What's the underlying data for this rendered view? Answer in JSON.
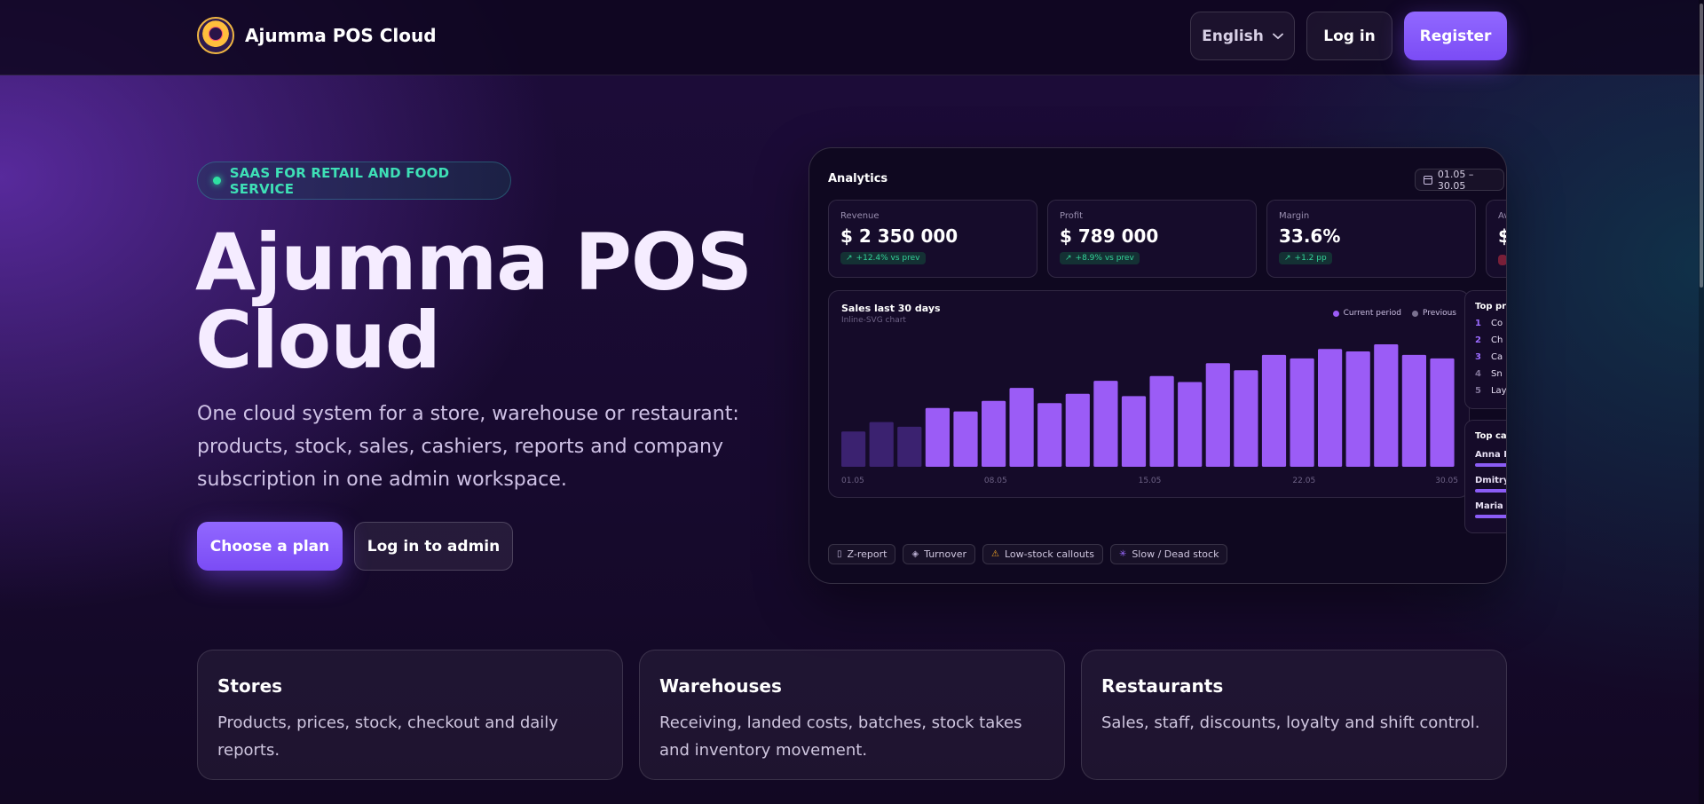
{
  "header": {
    "brand_name": "Ajumma POS Cloud",
    "language": "English",
    "login_label": "Log in",
    "register_label": "Register"
  },
  "hero": {
    "badge": "SAAS FOR RETAIL AND FOOD SERVICE",
    "title_line1": "Ajumma POS",
    "title_line2": "Cloud",
    "subtitle": "One cloud system for a store, warehouse or restaurant: products, stock, sales, cashiers, reports and company subscription in one admin workspace.",
    "cta_primary": "Choose a plan",
    "cta_secondary": "Log in to admin"
  },
  "dashboard": {
    "title": "Analytics",
    "date_range": "01.05 – 30.05",
    "kpis": [
      {
        "label": "Revenue",
        "value": "$ 2 350 000",
        "delta": "+12.4% vs prev"
      },
      {
        "label": "Profit",
        "value": "$ 789 000",
        "delta": "+8.9% vs prev"
      },
      {
        "label": "Margin",
        "value": "33.6%",
        "delta": "+1.2 pp"
      },
      {
        "label": "Av",
        "value": "$"
      }
    ],
    "top_products": {
      "title": "Top pr",
      "items": [
        {
          "rank": "1",
          "name": "Co"
        },
        {
          "rank": "2",
          "name": "Ch"
        },
        {
          "rank": "3",
          "name": "Ca"
        },
        {
          "rank": "4",
          "name": "Sn"
        },
        {
          "rank": "5",
          "name": "Lay"
        }
      ]
    },
    "top_cashiers": {
      "title": "Top ca",
      "items": [
        "Anna K",
        "Dmitry",
        "Maria S"
      ]
    },
    "tags": [
      {
        "icon": "document-icon",
        "label": "Z-report"
      },
      {
        "icon": "layers-icon",
        "label": "Turnover"
      },
      {
        "icon": "warning-icon",
        "label": "Low-stock callouts"
      },
      {
        "icon": "sparkle-icon",
        "label": "Slow / Dead stock"
      }
    ]
  },
  "chart_data": {
    "type": "bar",
    "title": "Sales last 30 days",
    "subtitle": "Inline-SVG chart",
    "legend": [
      {
        "name": "Current period",
        "color": "#9b5cf6"
      },
      {
        "name": "Previous",
        "color": "#7a7190"
      }
    ],
    "x_ticks": [
      "01.05",
      "08.05",
      "15.05",
      "22.05",
      "30.05"
    ],
    "values": [
      30,
      38,
      34,
      50,
      47,
      56,
      67,
      54,
      62,
      73,
      60,
      77,
      72,
      88,
      82,
      95,
      92,
      100,
      98,
      104,
      95,
      92
    ],
    "dim_count": 3,
    "colors": {
      "current": "#9b5cf6",
      "dim": "#3b2270"
    },
    "grid": false,
    "legend_position": "top-right"
  },
  "features": [
    {
      "title": "Stores",
      "text": "Products, prices, stock, checkout and daily reports."
    },
    {
      "title": "Warehouses",
      "text": "Receiving, landed costs, batches, stock takes and inventory movement."
    },
    {
      "title": "Restaurants",
      "text": "Sales, staff, discounts, loyalty and shift control."
    }
  ],
  "colors": {
    "accent": "#8b5cf6",
    "badge_text": "#3ee0b6",
    "positive": "#34d399",
    "warning": "#f5a524"
  }
}
